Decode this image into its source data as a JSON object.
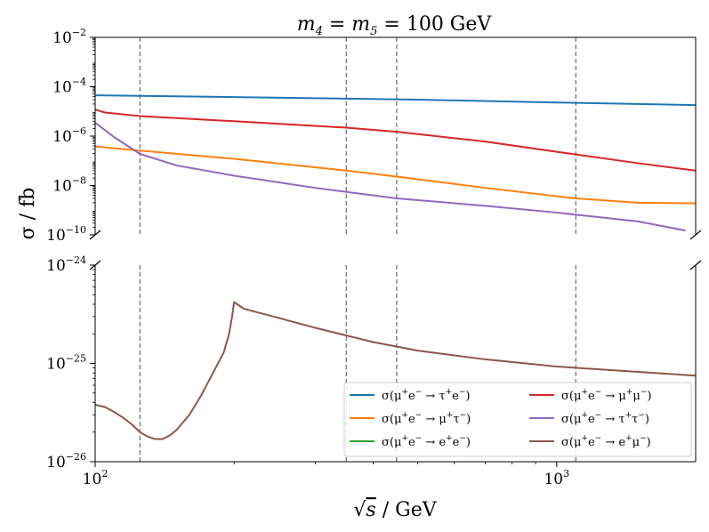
{
  "chart_data": {
    "type": "line",
    "title": "m4 = m5 = 100 GeV",
    "title_parts": {
      "lhs": "m",
      "lhs_sub": "4",
      "mid": " = m",
      "mid_sub": "5",
      "rhs": " = 100 GeV"
    },
    "xlabel": "√s / GeV",
    "xlabel_parts": {
      "root": "√",
      "var": "s",
      "unit": " / GeV"
    },
    "ylabel": "σ / fb",
    "xscale": "log",
    "yscale": "log",
    "xlim": [
      100,
      2000
    ],
    "x_ticks": [
      {
        "value": 100,
        "base": "10",
        "exp": "2"
      },
      {
        "value": 1000,
        "base": "10",
        "exp": "3"
      }
    ],
    "vertical_lines": [
      125,
      350,
      450,
      1100
    ],
    "broken_axis": true,
    "top_panel": {
      "ylim": [
        1e-10,
        0.01
      ],
      "y_ticks": [
        {
          "value": 0.01,
          "base": "10",
          "exp": "−2"
        },
        {
          "value": 0.0001,
          "base": "10",
          "exp": "−4"
        },
        {
          "value": 1e-06,
          "base": "10",
          "exp": "−6"
        },
        {
          "value": 1e-08,
          "base": "10",
          "exp": "−8"
        },
        {
          "value": 1e-10,
          "base": "10",
          "exp": "−10"
        }
      ],
      "series": [
        {
          "name": "σ(μ+e− → τ+e−)",
          "color": "#1f77b4",
          "x": [
            100,
            200,
            500,
            1000,
            2000
          ],
          "values": [
            4.5e-05,
            3.8e-05,
            3e-05,
            2.3e-05,
            1.8e-05
          ]
        },
        {
          "name": "σ(μ+e− → μ+μ−)",
          "color": "#d62728",
          "x": [
            100,
            105,
            125,
            200,
            350,
            450,
            700,
            1100,
            1500,
            2000
          ],
          "values": [
            1.2e-05,
            9e-06,
            6.5e-06,
            4e-06,
            2.2e-06,
            1.5e-06,
            6e-07,
            1.8e-07,
            8e-08,
            4e-08
          ]
        },
        {
          "name": "σ(μ+e− → μ+τ−)",
          "color": "#ff7f0e",
          "x": [
            100,
            125,
            200,
            350,
            450,
            700,
            1100,
            1500,
            2000
          ],
          "values": [
            3.8e-07,
            2.6e-07,
            1.2e-07,
            4e-08,
            2.3e-08,
            8e-09,
            3e-09,
            2e-09,
            1.9e-09
          ]
        },
        {
          "name": "σ(μ+e− → τ+τ−)",
          "color": "#9467bd",
          "x": [
            100,
            110,
            125,
            150,
            200,
            300,
            450,
            700,
            1000,
            1500,
            1900
          ],
          "values": [
            3.5e-06,
            9e-07,
            1.9e-07,
            6.5e-08,
            2.5e-08,
            8e-09,
            3e-09,
            1.5e-09,
            8e-10,
            3.5e-10,
            1.5e-10
          ]
        }
      ]
    },
    "bottom_panel": {
      "ylim": [
        1e-26,
        1e-24
      ],
      "y_ticks": [
        {
          "value": 1e-24,
          "base": "10",
          "exp": "−24"
        },
        {
          "value": 1e-25,
          "base": "10",
          "exp": "−25"
        },
        {
          "value": 1e-26,
          "base": "10",
          "exp": "−26"
        }
      ],
      "series": [
        {
          "name": "σ(μ+e− → e+e−)",
          "color": "#2ca02c",
          "x": [],
          "values": []
        },
        {
          "name": "σ(μ+e− → e+μ−)",
          "color": "#8c564b",
          "x": [
            100,
            105,
            110,
            115,
            120,
            125,
            130,
            135,
            140,
            145,
            150,
            160,
            170,
            180,
            190,
            195,
            198,
            200,
            210,
            250,
            300,
            400,
            500,
            700,
            1000,
            1500,
            2000
          ],
          "values": [
            3.8e-26,
            3.6e-26,
            3.2e-26,
            2.8e-26,
            2.4e-26,
            2e-26,
            1.8e-26,
            1.7e-26,
            1.7e-26,
            1.85e-26,
            2.1e-26,
            3e-26,
            4.8e-26,
            8e-26,
            1.3e-25,
            2e-25,
            3e-25,
            4.2e-25,
            3.6e-25,
            2.9e-25,
            2.3e-25,
            1.65e-25,
            1.35e-25,
            1.1e-25,
            9.3e-26,
            8.2e-26,
            7.5e-26
          ]
        }
      ]
    },
    "legend": {
      "position": "lower-right",
      "entries": [
        {
          "label": "σ(μ+e− → τ+e−)",
          "color": "#1f77b4",
          "parts": {
            "pre": "σ(μ",
            "s1": "+",
            "mid": "e",
            "s2": "−",
            "arrow": " → ",
            "f1": "τ",
            "s3": "+",
            "f2": "e",
            "s4": "−",
            "post": ")"
          }
        },
        {
          "label": "σ(μ+e− → μ+μ−)",
          "color": "#d62728",
          "parts": {
            "pre": "σ(μ",
            "s1": "+",
            "mid": "e",
            "s2": "−",
            "arrow": " → ",
            "f1": "μ",
            "s3": "+",
            "f2": "μ",
            "s4": "−",
            "post": ")"
          }
        },
        {
          "label": "σ(μ+e− → μ+τ−)",
          "color": "#ff7f0e",
          "parts": {
            "pre": "σ(μ",
            "s1": "+",
            "mid": "e",
            "s2": "−",
            "arrow": " → ",
            "f1": "μ",
            "s3": "+",
            "f2": "τ",
            "s4": "−",
            "post": ")"
          }
        },
        {
          "label": "σ(μ+e− → τ+τ−)",
          "color": "#9467bd",
          "parts": {
            "pre": "σ(μ",
            "s1": "+",
            "mid": "e",
            "s2": "−",
            "arrow": " → ",
            "f1": "τ",
            "s3": "+",
            "f2": "τ",
            "s4": "−",
            "post": ")"
          }
        },
        {
          "label": "σ(μ+e− → e+e−)",
          "color": "#2ca02c",
          "parts": {
            "pre": "σ(μ",
            "s1": "+",
            "mid": "e",
            "s2": "−",
            "arrow": " → ",
            "f1": "e",
            "s3": "+",
            "f2": "e",
            "s4": "−",
            "post": ")"
          }
        },
        {
          "label": "σ(μ+e− → e+μ−)",
          "color": "#8c564b",
          "parts": {
            "pre": "σ(μ",
            "s1": "+",
            "mid": "e",
            "s2": "−",
            "arrow": " → ",
            "f1": "e",
            "s3": "+",
            "f2": "μ",
            "s4": "−",
            "post": ")"
          }
        }
      ]
    }
  }
}
